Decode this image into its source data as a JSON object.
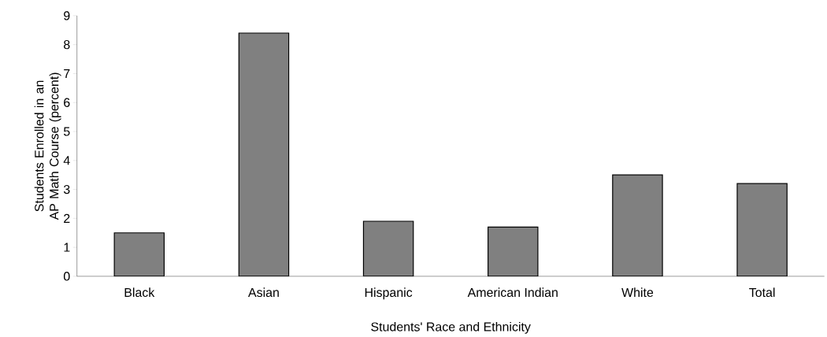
{
  "chart_data": {
    "type": "bar",
    "xlabel": "Students' Race and Ethnicity",
    "ylabel": "Students Enrolled in an AP Math Course (percent)",
    "categories": [
      "Black",
      "Asian",
      "Hispanic",
      "American Indian",
      "White",
      "Total"
    ],
    "values": [
      1.5,
      8.4,
      1.9,
      1.7,
      3.5,
      3.2
    ],
    "color": "#808080",
    "ylim": [
      0,
      9
    ],
    "yticks": [
      0,
      1,
      2,
      3,
      4,
      5,
      6,
      7,
      8,
      9
    ]
  }
}
